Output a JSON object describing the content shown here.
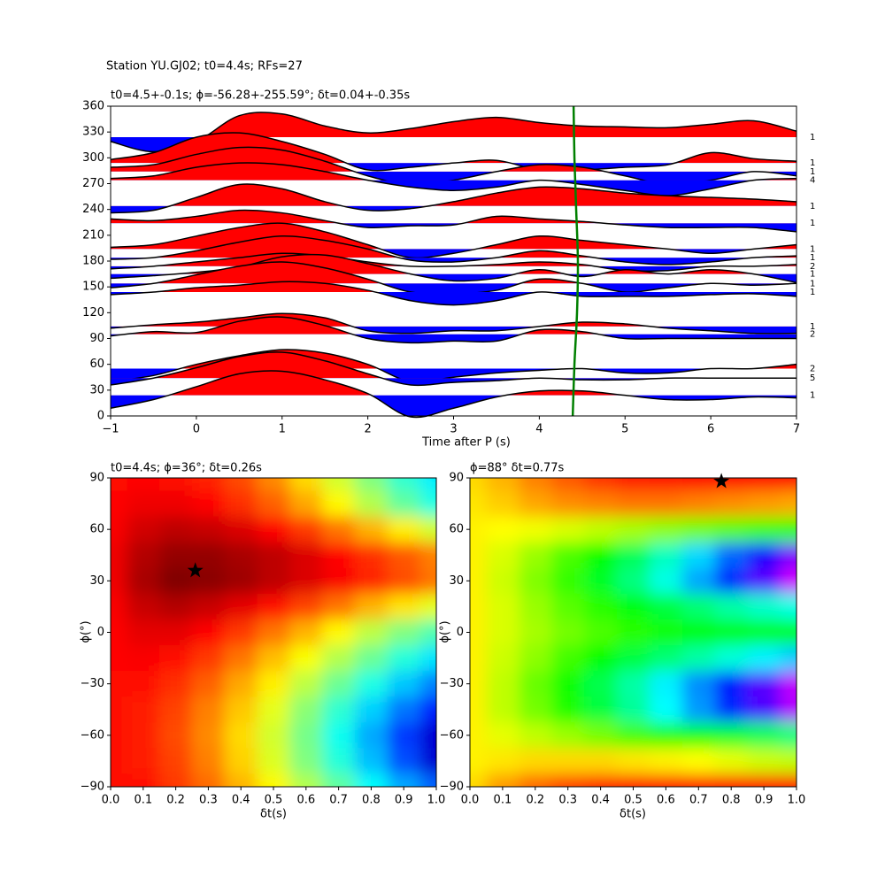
{
  "chart_data": [
    {
      "type": "wiggle",
      "suptitle": "Station YU.GJ02; t0=4.4s; RFs=27",
      "title": "t0=4.5+-0.1s; ϕ=-56.28+-255.59°; δt=0.04+-0.35s",
      "xlabel": "Time after P (s)",
      "xlim": [
        -1,
        7
      ],
      "ylim": [
        0,
        360
      ],
      "xticks": [
        {
          "value": -1,
          "label": "−1"
        },
        0,
        1,
        2,
        3,
        4,
        5,
        6,
        7
      ],
      "yticks": [
        0,
        30,
        60,
        90,
        120,
        150,
        180,
        210,
        240,
        270,
        300,
        330,
        360
      ],
      "positive_color": "#ff0000",
      "negative_color": "#0000ff",
      "line_color": "#000000",
      "t": [
        -1,
        -0.5,
        0,
        0.5,
        1,
        1.5,
        2,
        2.5,
        3,
        3.5,
        4,
        4.5,
        5,
        5.5,
        6,
        6.5,
        7
      ],
      "traces": [
        {
          "baz": 324,
          "count": 1,
          "values": [
            -5,
            -17,
            -5,
            25,
            27,
            13,
            5,
            10,
            18,
            23,
            17,
            13,
            12,
            11,
            15,
            19,
            7
          ]
        },
        {
          "baz": 294,
          "count": 1,
          "values": [
            4,
            12,
            30,
            35,
            25,
            10,
            -8,
            -5,
            0,
            3,
            -8,
            -8,
            -5,
            -2,
            12,
            5,
            2
          ]
        },
        {
          "baz": 284,
          "count": 1,
          "values": [
            5,
            8,
            20,
            28,
            25,
            12,
            -5,
            -15,
            -10,
            0,
            8,
            5,
            -5,
            -15,
            -10,
            0,
            -5
          ]
        },
        {
          "baz": 274,
          "count": 4,
          "values": [
            2,
            5,
            15,
            20,
            18,
            10,
            0,
            -8,
            -12,
            -8,
            0,
            -5,
            -12,
            -18,
            -10,
            0,
            2
          ]
        },
        {
          "baz": 244,
          "count": 1,
          "values": [
            -8,
            -5,
            10,
            25,
            20,
            5,
            -5,
            -3,
            5,
            15,
            22,
            20,
            15,
            12,
            10,
            8,
            5
          ]
        },
        {
          "baz": 224,
          "count": 1,
          "values": [
            5,
            3,
            8,
            15,
            12,
            3,
            -5,
            -3,
            -2,
            8,
            5,
            2,
            -2,
            -5,
            -5,
            -5,
            -10
          ]
        },
        {
          "baz": 194,
          "count": 1,
          "values": [
            2,
            5,
            15,
            25,
            30,
            20,
            5,
            -10,
            -5,
            5,
            15,
            10,
            5,
            0,
            -5,
            0,
            5
          ]
        },
        {
          "baz": 184,
          "count": 1,
          "values": [
            -2,
            0,
            8,
            18,
            25,
            20,
            10,
            -3,
            -5,
            0,
            8,
            2,
            -5,
            -8,
            -5,
            0,
            2
          ]
        },
        {
          "baz": 174,
          "count": 2,
          "values": [
            -3,
            0,
            5,
            10,
            15,
            12,
            5,
            0,
            0,
            2,
            5,
            2,
            -5,
            -5,
            0,
            0,
            2
          ]
        },
        {
          "baz": 165,
          "count": 1,
          "values": [
            -5,
            -2,
            2,
            8,
            20,
            22,
            12,
            0,
            -8,
            -5,
            5,
            -3,
            5,
            0,
            5,
            0,
            -10
          ]
        },
        {
          "baz": 154,
          "count": 1,
          "values": [
            -5,
            0,
            10,
            20,
            25,
            18,
            5,
            -10,
            -12,
            -8,
            5,
            0,
            -10,
            -5,
            0,
            -2,
            0
          ]
        },
        {
          "baz": 144,
          "count": 1,
          "values": [
            -3,
            0,
            5,
            8,
            12,
            10,
            2,
            -10,
            -15,
            -10,
            0,
            -5,
            -5,
            -5,
            -3,
            -2,
            -5
          ]
        },
        {
          "baz": 104,
          "count": 1,
          "values": [
            -2,
            2,
            5,
            10,
            15,
            10,
            -5,
            -8,
            -5,
            -5,
            0,
            5,
            3,
            -2,
            -5,
            -8,
            -8
          ]
        },
        {
          "baz": 95,
          "count": 2,
          "values": [
            -2,
            3,
            2,
            15,
            20,
            10,
            -5,
            -10,
            -8,
            -8,
            5,
            3,
            -5,
            -5,
            -5,
            -5,
            -5
          ]
        },
        {
          "baz": 55,
          "count": 2,
          "values": [
            -15,
            -8,
            5,
            15,
            22,
            18,
            5,
            -15,
            -10,
            -5,
            -2,
            0,
            -5,
            -5,
            0,
            0,
            5
          ]
        },
        {
          "baz": 44,
          "count": 5,
          "values": [
            -8,
            0,
            12,
            25,
            30,
            20,
            5,
            -8,
            -5,
            -3,
            0,
            -2,
            -2,
            0,
            0,
            0,
            0
          ]
        },
        {
          "baz": 24,
          "count": 1,
          "values": [
            -15,
            -5,
            10,
            25,
            28,
            18,
            2,
            -25,
            -15,
            -2,
            5,
            5,
            0,
            -5,
            -5,
            -2,
            -3
          ]
        }
      ],
      "t0_line": {
        "color": "#008000",
        "baz": [
          0,
          60,
          120,
          180,
          240,
          300,
          360
        ],
        "t": [
          4.39,
          4.41,
          4.44,
          4.45,
          4.43,
          4.41,
          4.4
        ]
      }
    },
    {
      "type": "heatmap",
      "title": "t0=4.4s; ϕ=36°; δt=0.26s",
      "xlabel": "δt(s)",
      "ylabel": "ϕ(°)",
      "colormap": "jet",
      "xlim": [
        0,
        1
      ],
      "ylim": [
        -90,
        90
      ],
      "xticks": [
        {
          "value": 0,
          "label": "0.0"
        },
        0.1,
        0.2,
        0.3,
        0.4,
        0.5,
        0.6,
        0.7,
        0.8,
        0.9,
        {
          "value": 1,
          "label": "1.0"
        }
      ],
      "yticks": [
        {
          "value": -90,
          "label": "−90"
        },
        {
          "value": -60,
          "label": "−60"
        },
        {
          "value": -30,
          "label": "−30"
        },
        0,
        30,
        60,
        90
      ],
      "x": [
        0,
        0.1,
        0.2,
        0.3,
        0.4,
        0.5,
        0.6,
        0.7,
        0.8,
        0.9,
        1
      ],
      "y": [
        90,
        75,
        60,
        45,
        30,
        15,
        0,
        -15,
        -30,
        -45,
        -60,
        -75,
        -90
      ],
      "values": [
        [
          0.86,
          0.87,
          0.86,
          0.84,
          0.8,
          0.74,
          0.66,
          0.58,
          0.5,
          0.42,
          0.36
        ],
        [
          0.87,
          0.89,
          0.89,
          0.87,
          0.83,
          0.78,
          0.71,
          0.63,
          0.55,
          0.47,
          0.4
        ],
        [
          0.88,
          0.92,
          0.94,
          0.93,
          0.91,
          0.87,
          0.82,
          0.76,
          0.7,
          0.64,
          0.58
        ],
        [
          0.89,
          0.95,
          0.98,
          0.98,
          0.96,
          0.94,
          0.91,
          0.87,
          0.83,
          0.79,
          0.75
        ],
        [
          0.89,
          0.96,
          1.0,
          0.99,
          0.97,
          0.94,
          0.91,
          0.88,
          0.84,
          0.8,
          0.76
        ],
        [
          0.88,
          0.93,
          0.95,
          0.93,
          0.9,
          0.86,
          0.81,
          0.76,
          0.7,
          0.65,
          0.6
        ],
        [
          0.87,
          0.9,
          0.9,
          0.87,
          0.82,
          0.76,
          0.7,
          0.63,
          0.56,
          0.5,
          0.45
        ],
        [
          0.87,
          0.88,
          0.86,
          0.82,
          0.76,
          0.69,
          0.62,
          0.55,
          0.48,
          0.41,
          0.35
        ],
        [
          0.86,
          0.86,
          0.83,
          0.78,
          0.71,
          0.64,
          0.56,
          0.48,
          0.4,
          0.32,
          0.25
        ],
        [
          0.86,
          0.85,
          0.81,
          0.75,
          0.68,
          0.6,
          0.51,
          0.42,
          0.33,
          0.24,
          0.15
        ],
        [
          0.86,
          0.85,
          0.8,
          0.74,
          0.66,
          0.58,
          0.49,
          0.39,
          0.29,
          0.18,
          0.08
        ],
        [
          0.86,
          0.85,
          0.81,
          0.75,
          0.67,
          0.59,
          0.5,
          0.41,
          0.31,
          0.2,
          0.08
        ],
        [
          0.86,
          0.86,
          0.82,
          0.77,
          0.7,
          0.63,
          0.55,
          0.47,
          0.38,
          0.29,
          0.22
        ]
      ],
      "marker": {
        "x": 0.26,
        "y": 36,
        "color": "#000000"
      }
    },
    {
      "type": "heatmap",
      "title": "ϕ=88° δt=0.77s",
      "xlabel": "δt(s)",
      "ylabel": "ϕ(°)",
      "colormap": "gist_rainbow",
      "xlim": [
        0,
        1
      ],
      "ylim": [
        -90,
        90
      ],
      "xticks": [
        {
          "value": 0,
          "label": "0.0"
        },
        0.1,
        0.2,
        0.3,
        0.4,
        0.5,
        0.6,
        0.7,
        0.8,
        0.9,
        {
          "value": 1,
          "label": "1.0"
        }
      ],
      "yticks": [
        {
          "value": -90,
          "label": "−90"
        },
        {
          "value": -60,
          "label": "−60"
        },
        {
          "value": -30,
          "label": "−30"
        },
        0,
        30,
        60,
        90
      ],
      "x": [
        0,
        0.1,
        0.2,
        0.3,
        0.4,
        0.5,
        0.6,
        0.7,
        0.8,
        0.9,
        1
      ],
      "y": [
        90,
        75,
        60,
        45,
        30,
        15,
        0,
        -15,
        -30,
        -45,
        -60,
        -75,
        -90
      ],
      "values": [
        [
          0.17,
          0.14,
          0.1,
          0.07,
          0.04,
          0.02,
          0.01,
          0.0,
          0.0,
          0.0,
          0.0
        ],
        [
          0.18,
          0.16,
          0.13,
          0.11,
          0.1,
          0.09,
          0.09,
          0.1,
          0.11,
          0.12,
          0.13
        ],
        [
          0.19,
          0.2,
          0.21,
          0.23,
          0.25,
          0.27,
          0.29,
          0.31,
          0.33,
          0.35,
          0.36
        ],
        [
          0.19,
          0.23,
          0.28,
          0.34,
          0.4,
          0.47,
          0.55,
          0.63,
          0.72,
          0.82,
          0.9
        ],
        [
          0.19,
          0.24,
          0.3,
          0.36,
          0.43,
          0.5,
          0.58,
          0.67,
          0.77,
          0.87,
          0.96
        ],
        [
          0.19,
          0.23,
          0.28,
          0.33,
          0.37,
          0.41,
          0.45,
          0.49,
          0.53,
          0.56,
          0.58
        ],
        [
          0.19,
          0.23,
          0.27,
          0.31,
          0.34,
          0.37,
          0.39,
          0.4,
          0.41,
          0.42,
          0.42
        ],
        [
          0.19,
          0.24,
          0.29,
          0.35,
          0.4,
          0.45,
          0.49,
          0.53,
          0.57,
          0.61,
          0.64
        ],
        [
          0.19,
          0.25,
          0.32,
          0.39,
          0.46,
          0.53,
          0.61,
          0.69,
          0.78,
          0.87,
          0.95
        ],
        [
          0.19,
          0.25,
          0.31,
          0.38,
          0.45,
          0.52,
          0.6,
          0.68,
          0.77,
          0.86,
          0.94
        ],
        [
          0.19,
          0.22,
          0.25,
          0.28,
          0.31,
          0.35,
          0.38,
          0.41,
          0.44,
          0.47,
          0.5
        ],
        [
          0.19,
          0.18,
          0.17,
          0.17,
          0.17,
          0.18,
          0.19,
          0.2,
          0.22,
          0.24,
          0.25
        ],
        [
          0.17,
          0.12,
          0.08,
          0.05,
          0.03,
          0.02,
          0.01,
          0.01,
          0.0,
          0.0,
          0.0
        ]
      ],
      "marker": {
        "x": 0.77,
        "y": 88,
        "color": "#000000"
      }
    }
  ]
}
